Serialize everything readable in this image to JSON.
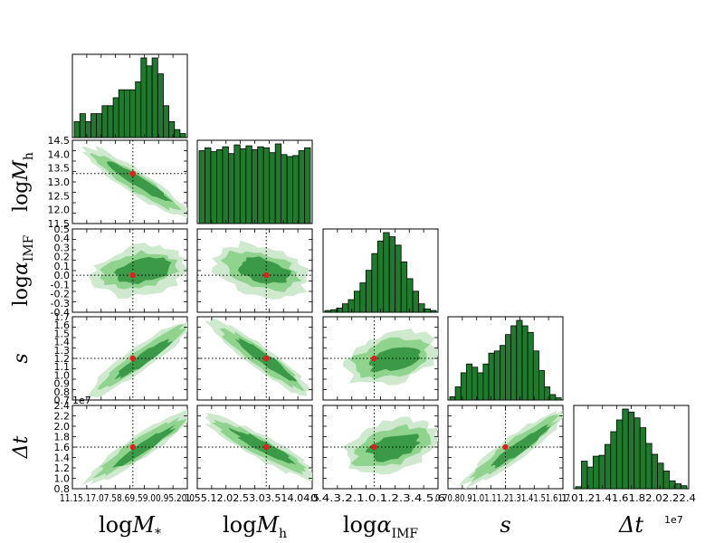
{
  "chart_data": {
    "type": "corner",
    "colors": {
      "hist_fill": "#1e7b2e",
      "contour_outer": "#cfe9cf",
      "contour_mid": "#8fd38f",
      "contour_inner": "#3a9a48",
      "truth_marker": "#e02020",
      "truth_line": "#000000"
    },
    "parameters": [
      {
        "name": "logMstar",
        "label_main": "log",
        "label_var": "M",
        "label_sub": "*",
        "range": [
          11.1,
          12.05
        ],
        "truth": 11.6,
        "ticks_text": "11.15.17.07.58.69.59.00.95.20.0",
        "y_ticks": [],
        "offset_text": "",
        "hist": [
          2,
          3,
          2,
          3,
          3,
          4,
          4,
          5,
          6,
          6,
          6,
          7,
          10,
          9,
          10,
          8,
          4,
          2,
          1,
          0.5
        ]
      },
      {
        "name": "logMh",
        "label_main": "log",
        "label_var": "M",
        "label_sub": "h",
        "range": [
          11.5,
          14.5
        ],
        "truth": 13.3,
        "ticks_text": "1.55.12.02.53.03.514.04.5",
        "y_ticks": [
          "11.5",
          "12.0",
          "12.5",
          "13.0",
          "13.5",
          "14.0",
          "14.5"
        ],
        "offset_text": "",
        "hist": [
          7.5,
          7.8,
          7.4,
          7.6,
          7.9,
          7.2,
          8.1,
          7.7,
          8.0,
          7.6,
          7.9,
          7.8,
          7.3,
          8.2,
          7.1,
          6.9,
          7.0,
          7.5,
          7.8
        ]
      },
      {
        "name": "logalphaIMF",
        "label_main": "log",
        "label_var": "α",
        "label_sub": "IMF",
        "range": [
          -0.4,
          0.5
        ],
        "truth": 0.0,
        "ticks_text": "0.4.3.2.1.0.1.2.3.4.5.6",
        "y_ticks": [
          "-0.4",
          "-0.3",
          "-0.2",
          "-0.1",
          "0.0",
          "0.1",
          "0.2",
          "0.3",
          "0.4",
          "0.5"
        ],
        "offset_text": "",
        "hist": [
          0.2,
          0.3,
          0.5,
          1,
          1.5,
          2.5,
          3.5,
          5,
          7,
          8.5,
          9.5,
          9,
          8,
          6,
          4,
          2.5,
          1,
          0.4,
          0.2
        ]
      },
      {
        "name": "s",
        "label_main": "",
        "label_var": "s",
        "label_sub": "",
        "range": [
          0.7,
          1.7
        ],
        "truth": 1.2,
        "ticks_text": "0.70.80.91.01.11.21.31.41.51.61.7",
        "y_ticks": [
          "0.7",
          "0.8",
          "0.9",
          "1.0",
          "1.1",
          "1.2",
          "1.3",
          "1.4",
          "1.5",
          "1.6",
          "1.7"
        ],
        "offset_text": "1e7",
        "hist": [
          0.3,
          1.2,
          2.5,
          3.3,
          3.0,
          2.5,
          3.3,
          4.3,
          4.5,
          5.0,
          6.0,
          6.8,
          7.3,
          6.8,
          6.2,
          4.5,
          2.7,
          1.2,
          0.5,
          0.2
        ]
      },
      {
        "name": "Delta_t",
        "label_main": "",
        "label_var": "Δt",
        "label_sub": "",
        "range": [
          0.8,
          2.4
        ],
        "truth": 1.6,
        "ticks_text": "1.01.21.41.61.82.02.22.4",
        "y_ticks": [
          "0.8",
          "1.0",
          "1.2",
          "1.4",
          "1.6",
          "1.8",
          "2.0",
          "2.2",
          "2.4"
        ],
        "offset_text": "1e7",
        "hist": [
          0.2,
          2.8,
          2.2,
          3.3,
          3.4,
          4.5,
          5.8,
          7.0,
          8.1,
          7.8,
          7.2,
          6.2,
          4.6,
          3.5,
          2.6,
          1.8,
          0.8,
          0.5,
          0.3
        ]
      }
    ],
    "x_offset_label": "1e7",
    "y_offset_label_row4": "1e7",
    "correlations": [
      {
        "i": 1,
        "j": 0,
        "slope": -0.9
      },
      {
        "i": 2,
        "j": 0,
        "slope": 0.25
      },
      {
        "i": 2,
        "j": 1,
        "slope": -0.35
      },
      {
        "i": 3,
        "j": 0,
        "slope": 1.0
      },
      {
        "i": 3,
        "j": 1,
        "slope": -1.0
      },
      {
        "i": 3,
        "j": 2,
        "slope": 0.35
      },
      {
        "i": 4,
        "j": 0,
        "slope": 0.9
      },
      {
        "i": 4,
        "j": 1,
        "slope": -0.75
      },
      {
        "i": 4,
        "j": 2,
        "slope": 0.4
      },
      {
        "i": 4,
        "j": 3,
        "slope": 1.0
      }
    ]
  }
}
